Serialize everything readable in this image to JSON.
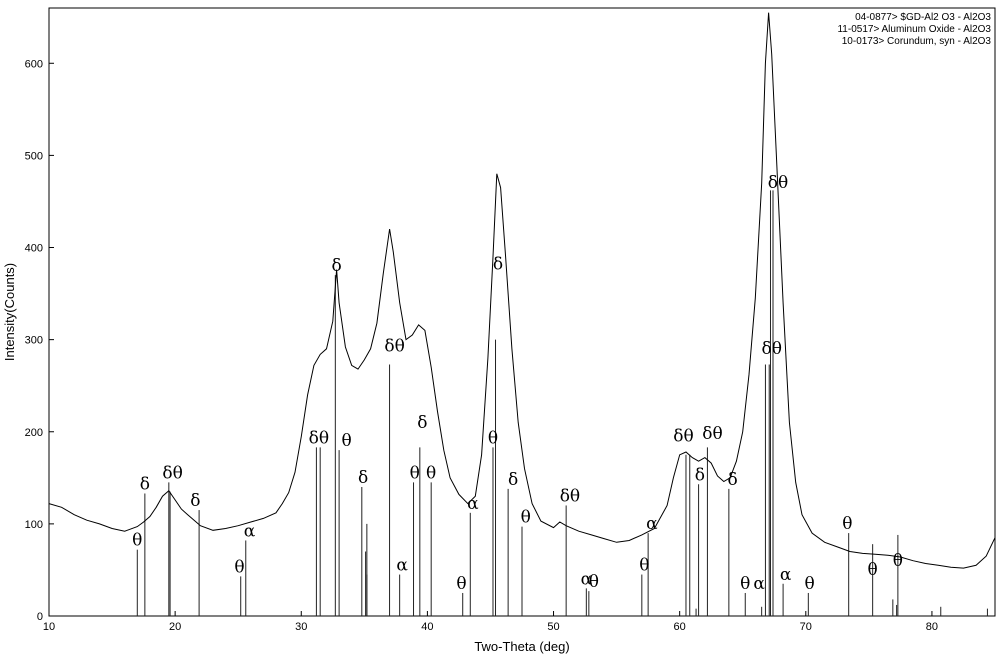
{
  "chart_data": {
    "type": "line",
    "xlabel": "Two-Theta (deg)",
    "ylabel": "Intensity(Counts)",
    "xlim": [
      10,
      85
    ],
    "ylim": [
      0,
      660
    ],
    "xticks": [
      10,
      20,
      30,
      40,
      50,
      60,
      70,
      80
    ],
    "yticks": [
      0,
      100,
      200,
      300,
      400,
      500,
      600
    ],
    "grid": false,
    "legend": {
      "position": "top-right",
      "entries": [
        "04-0877> $GD-Al2 O3 - Al2O3",
        "11-0517> Aluminum Oxide - Al2O3",
        "10-0173> Corundum, syn - Al2O3"
      ]
    },
    "series": [
      {
        "kind": "pattern",
        "points": [
          [
            10,
            122
          ],
          [
            11,
            118
          ],
          [
            12,
            110
          ],
          [
            13,
            104
          ],
          [
            14,
            100
          ],
          [
            15,
            95
          ],
          [
            16,
            92
          ],
          [
            17,
            97
          ],
          [
            17.5,
            102
          ],
          [
            18,
            108
          ],
          [
            18.5,
            118
          ],
          [
            19,
            130
          ],
          [
            19.5,
            136
          ],
          [
            20,
            126
          ],
          [
            20.5,
            116
          ],
          [
            21,
            110
          ],
          [
            21.5,
            104
          ],
          [
            22,
            98
          ],
          [
            23,
            93
          ],
          [
            24,
            95
          ],
          [
            25,
            98
          ],
          [
            26,
            102
          ],
          [
            27,
            106
          ],
          [
            28,
            112
          ],
          [
            28.5,
            122
          ],
          [
            29,
            134
          ],
          [
            29.5,
            156
          ],
          [
            30,
            195
          ],
          [
            30.5,
            240
          ],
          [
            31,
            272
          ],
          [
            31.5,
            284
          ],
          [
            32,
            290
          ],
          [
            32.5,
            320
          ],
          [
            32.8,
            376
          ],
          [
            33,
            340
          ],
          [
            33.5,
            292
          ],
          [
            34,
            272
          ],
          [
            34.5,
            268
          ],
          [
            35,
            278
          ],
          [
            35.5,
            290
          ],
          [
            36,
            318
          ],
          [
            36.5,
            372
          ],
          [
            37,
            420
          ],
          [
            37.3,
            395
          ],
          [
            37.8,
            340
          ],
          [
            38.3,
            300
          ],
          [
            38.8,
            305
          ],
          [
            39.3,
            316
          ],
          [
            39.8,
            310
          ],
          [
            40.3,
            270
          ],
          [
            40.8,
            222
          ],
          [
            41.3,
            180
          ],
          [
            41.8,
            150
          ],
          [
            42.5,
            132
          ],
          [
            43.2,
            122
          ],
          [
            43.8,
            130
          ],
          [
            44.3,
            175
          ],
          [
            44.8,
            280
          ],
          [
            45.2,
            390
          ],
          [
            45.5,
            480
          ],
          [
            45.8,
            465
          ],
          [
            46.2,
            390
          ],
          [
            46.7,
            290
          ],
          [
            47.2,
            210
          ],
          [
            47.7,
            160
          ],
          [
            48.3,
            122
          ],
          [
            49,
            103
          ],
          [
            50,
            96
          ],
          [
            50.5,
            102
          ],
          [
            51,
            98
          ],
          [
            52,
            92
          ],
          [
            53,
            88
          ],
          [
            54,
            84
          ],
          [
            55,
            80
          ],
          [
            56,
            82
          ],
          [
            57,
            88
          ],
          [
            58,
            95
          ],
          [
            59,
            120
          ],
          [
            59.5,
            150
          ],
          [
            60,
            175
          ],
          [
            60.5,
            178
          ],
          [
            61,
            172
          ],
          [
            61.5,
            168
          ],
          [
            62,
            172
          ],
          [
            62.5,
            166
          ],
          [
            63,
            152
          ],
          [
            63.5,
            146
          ],
          [
            64,
            150
          ],
          [
            64.5,
            168
          ],
          [
            65,
            200
          ],
          [
            65.5,
            262
          ],
          [
            66,
            345
          ],
          [
            66.5,
            470
          ],
          [
            66.8,
            600
          ],
          [
            67.05,
            655
          ],
          [
            67.3,
            610
          ],
          [
            67.7,
            490
          ],
          [
            68.2,
            340
          ],
          [
            68.7,
            210
          ],
          [
            69.2,
            145
          ],
          [
            69.7,
            110
          ],
          [
            70.5,
            90
          ],
          [
            71.5,
            80
          ],
          [
            72.5,
            75
          ],
          [
            73.5,
            70
          ],
          [
            74.5,
            68
          ],
          [
            75.5,
            67
          ],
          [
            76.5,
            66
          ],
          [
            77.5,
            64
          ],
          [
            78.5,
            60
          ],
          [
            79.5,
            57
          ],
          [
            80.5,
            55
          ],
          [
            81.5,
            53
          ],
          [
            82.5,
            52
          ],
          [
            83.5,
            55
          ],
          [
            84.3,
            65
          ],
          [
            85,
            85
          ]
        ]
      },
      {
        "kind": "reference",
        "name": "04-0877> $GD-Al2 O3 - Al2O3",
        "sticks": [
          [
            17,
            72
          ],
          [
            17.6,
            133
          ],
          [
            19.5,
            145
          ],
          [
            21.9,
            115
          ],
          [
            31.2,
            183
          ],
          [
            34.8,
            140
          ],
          [
            35.1,
            70
          ],
          [
            37,
            273
          ],
          [
            39.4,
            183
          ],
          [
            45.4,
            300
          ],
          [
            46.4,
            138
          ],
          [
            60.5,
            175
          ],
          [
            61.5,
            143
          ],
          [
            62.2,
            183
          ],
          [
            67.2,
            462
          ],
          [
            67.4,
            462
          ],
          [
            73.4,
            90
          ],
          [
            75.3,
            78
          ],
          [
            77.3,
            88
          ]
        ]
      },
      {
        "kind": "reference",
        "name": "11-0517> Aluminum Oxide - Al2O3",
        "sticks": [
          [
            19.6,
            135
          ],
          [
            25.2,
            43
          ],
          [
            31.5,
            183
          ],
          [
            32.7,
            370
          ],
          [
            33,
            180
          ],
          [
            35.2,
            100
          ],
          [
            38.9,
            145
          ],
          [
            40.3,
            145
          ],
          [
            42.8,
            25
          ],
          [
            45.2,
            183
          ],
          [
            47.5,
            97
          ],
          [
            51,
            120
          ],
          [
            52.8,
            27
          ],
          [
            57,
            45
          ],
          [
            60.8,
            175
          ],
          [
            63.9,
            138
          ],
          [
            65.2,
            25
          ],
          [
            66.8,
            273
          ],
          [
            67.1,
            273
          ],
          [
            70.2,
            25
          ]
        ]
      },
      {
        "kind": "reference",
        "name": "10-0173> Corundum, syn - Al2O3",
        "sticks": [
          [
            25.6,
            82
          ],
          [
            35.2,
            45
          ],
          [
            37.8,
            45
          ],
          [
            43.4,
            112
          ],
          [
            52.6,
            30
          ],
          [
            57.5,
            90
          ],
          [
            61.3,
            8
          ],
          [
            66.5,
            10
          ],
          [
            68.2,
            35
          ],
          [
            76.9,
            18
          ],
          [
            77.2,
            12
          ],
          [
            80.7,
            10
          ],
          [
            84.4,
            8
          ]
        ]
      }
    ],
    "annotations": [
      {
        "text": "θ",
        "x": 17,
        "y": 72
      },
      {
        "text": "δ",
        "x": 17.6,
        "y": 133
      },
      {
        "text": "δθ",
        "x": 19.8,
        "y": 145
      },
      {
        "text": "δ",
        "x": 21.6,
        "y": 115
      },
      {
        "text": "θ",
        "x": 25.1,
        "y": 43
      },
      {
        "text": "α",
        "x": 25.9,
        "y": 82
      },
      {
        "text": "δθ",
        "x": 31.4,
        "y": 183
      },
      {
        "text": "θ",
        "x": 33.6,
        "y": 180
      },
      {
        "text": "δ",
        "x": 32.8,
        "y": 370
      },
      {
        "text": "δ",
        "x": 34.9,
        "y": 140
      },
      {
        "text": "δθ",
        "x": 37.4,
        "y": 283
      },
      {
        "text": "α",
        "x": 38,
        "y": 45
      },
      {
        "text": "δ",
        "x": 39.6,
        "y": 200
      },
      {
        "text": "θ",
        "x": 39.0,
        "y": 145
      },
      {
        "text": "θ",
        "x": 40.3,
        "y": 145
      },
      {
        "text": "θ",
        "x": 42.7,
        "y": 25
      },
      {
        "text": "α",
        "x": 43.6,
        "y": 112
      },
      {
        "text": "θ",
        "x": 45.2,
        "y": 183
      },
      {
        "text": "δ",
        "x": 45.6,
        "y": 372
      },
      {
        "text": "δ",
        "x": 46.8,
        "y": 138
      },
      {
        "text": "θ",
        "x": 47.8,
        "y": 97
      },
      {
        "text": "δθ",
        "x": 51.3,
        "y": 120
      },
      {
        "text": "α",
        "x": 52.6,
        "y": 30
      },
      {
        "text": "θ",
        "x": 53.2,
        "y": 27
      },
      {
        "text": "θ",
        "x": 57.2,
        "y": 45
      },
      {
        "text": "α",
        "x": 57.8,
        "y": 90
      },
      {
        "text": "δθ",
        "x": 60.3,
        "y": 185
      },
      {
        "text": "δ",
        "x": 61.6,
        "y": 143
      },
      {
        "text": "δθ",
        "x": 62.6,
        "y": 188
      },
      {
        "text": "δ",
        "x": 64.2,
        "y": 138
      },
      {
        "text": "θ",
        "x": 65.2,
        "y": 25
      },
      {
        "text": "α",
        "x": 66.3,
        "y": 25
      },
      {
        "text": "δθ",
        "x": 67.3,
        "y": 280
      },
      {
        "text": "δθ",
        "x": 67.8,
        "y": 460
      },
      {
        "text": "α",
        "x": 68.4,
        "y": 35
      },
      {
        "text": "θ",
        "x": 70.3,
        "y": 25
      },
      {
        "text": "θ",
        "x": 73.3,
        "y": 90
      },
      {
        "text": "θ",
        "x": 75.3,
        "y": 40
      },
      {
        "text": "θ",
        "x": 77.3,
        "y": 50
      }
    ]
  }
}
